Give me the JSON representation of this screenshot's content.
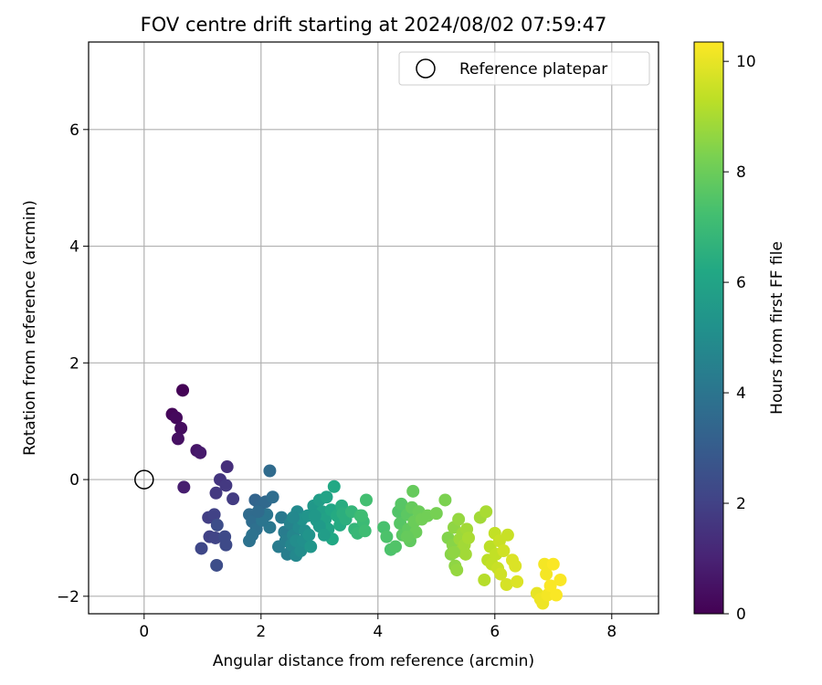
{
  "chart_data": {
    "type": "scatter",
    "title": "FOV centre drift starting at 2024/08/02 07:59:47",
    "xlabel": "Angular distance from reference (arcmin)",
    "ylabel": "Rotation from reference (arcmin)",
    "xlim": [
      -0.95,
      8.8
    ],
    "ylim": [
      -2.3,
      7.5
    ],
    "xticks": [
      "0",
      "2",
      "4",
      "6",
      "8"
    ],
    "xtick_values": [
      0,
      2,
      4,
      6,
      8
    ],
    "yticks": [
      "−2",
      "0",
      "2",
      "4",
      "6"
    ],
    "ytick_values": [
      -2,
      0,
      2,
      4,
      6
    ],
    "grid": true,
    "legend": {
      "placement": "top-right",
      "label": "Reference platepar"
    },
    "reference_point": {
      "x": 0,
      "y": 0
    },
    "colorbar": {
      "label": "Hours from first FF file",
      "range": [
        0,
        10.35
      ],
      "ticks": [
        "0",
        "2",
        "4",
        "6",
        "8",
        "10"
      ],
      "tick_values": [
        0,
        2,
        4,
        6,
        8,
        10
      ],
      "colormap": "viridis"
    },
    "points": [
      [
        0.66,
        1.53,
        0.05
      ],
      [
        0.48,
        1.12,
        0.15
      ],
      [
        0.55,
        1.06,
        0.25
      ],
      [
        0.63,
        0.88,
        0.35
      ],
      [
        0.58,
        0.7,
        0.45
      ],
      [
        0.9,
        0.5,
        0.6
      ],
      [
        0.96,
        0.46,
        0.75
      ],
      [
        0.68,
        -0.13,
        0.85
      ],
      [
        1.42,
        0.22,
        1.4
      ],
      [
        1.3,
        0.0,
        1.6
      ],
      [
        1.4,
        -0.1,
        1.7
      ],
      [
        1.52,
        -0.33,
        1.8
      ],
      [
        1.23,
        -0.23,
        1.7
      ],
      [
        1.1,
        -0.65,
        1.9
      ],
      [
        1.2,
        -0.6,
        2.0
      ],
      [
        1.12,
        -0.98,
        2.0
      ],
      [
        1.22,
        -1.0,
        2.1
      ],
      [
        0.98,
        -1.18,
        2.2
      ],
      [
        1.38,
        -0.98,
        2.3
      ],
      [
        1.4,
        -1.12,
        2.3
      ],
      [
        1.24,
        -1.47,
        2.4
      ],
      [
        1.25,
        -0.78,
        2.4
      ],
      [
        2.15,
        0.15,
        3.6
      ],
      [
        1.9,
        -0.35,
        3.3
      ],
      [
        1.98,
        -0.45,
        3.4
      ],
      [
        2.08,
        -0.38,
        3.5
      ],
      [
        2.2,
        -0.3,
        3.7
      ],
      [
        1.8,
        -0.6,
        3.6
      ],
      [
        1.85,
        -0.72,
        3.7
      ],
      [
        1.92,
        -0.85,
        3.8
      ],
      [
        1.85,
        -0.95,
        3.9
      ],
      [
        1.8,
        -1.05,
        3.9
      ],
      [
        2.1,
        -0.6,
        4.0
      ],
      [
        2.15,
        -0.82,
        4.1
      ],
      [
        2.02,
        -0.7,
        4.0
      ],
      [
        1.95,
        -0.55,
        3.6
      ],
      [
        2.35,
        -0.65,
        4.2
      ],
      [
        2.4,
        -0.9,
        4.3
      ],
      [
        2.3,
        -1.15,
        4.3
      ],
      [
        2.42,
        -1.05,
        4.4
      ],
      [
        2.45,
        -1.28,
        4.4
      ],
      [
        2.5,
        -0.75,
        4.6
      ],
      [
        2.55,
        -0.95,
        4.7
      ],
      [
        2.52,
        -1.12,
        4.7
      ],
      [
        2.6,
        -1.3,
        4.8
      ],
      [
        2.62,
        -0.55,
        4.9
      ],
      [
        2.65,
        -0.82,
        4.9
      ],
      [
        2.6,
        -1.05,
        5.0
      ],
      [
        2.68,
        -1.22,
        5.0
      ],
      [
        2.72,
        -1.05,
        5.1
      ],
      [
        2.75,
        -0.88,
        5.1
      ],
      [
        2.7,
        -0.68,
        5.2
      ],
      [
        2.8,
        -0.62,
        5.3
      ],
      [
        2.82,
        -0.95,
        5.3
      ],
      [
        2.85,
        -1.15,
        5.4
      ],
      [
        2.55,
        -0.65,
        4.8
      ],
      [
        2.9,
        -0.45,
        5.5
      ],
      [
        2.95,
        -0.7,
        5.6
      ],
      [
        3.0,
        -0.35,
        5.7
      ],
      [
        3.05,
        -0.55,
        5.8
      ],
      [
        3.1,
        -0.68,
        5.9
      ],
      [
        3.12,
        -0.3,
        6.0
      ],
      [
        3.15,
        -0.85,
        6.0
      ],
      [
        3.2,
        -0.52,
        6.1
      ],
      [
        3.22,
        -1.02,
        6.2
      ],
      [
        3.25,
        -0.12,
        6.2
      ],
      [
        3.3,
        -0.62,
        6.3
      ],
      [
        3.35,
        -0.78,
        6.3
      ],
      [
        3.38,
        -0.45,
        6.4
      ],
      [
        3.4,
        -0.58,
        6.5
      ],
      [
        3.45,
        -0.68,
        6.5
      ],
      [
        3.0,
        -0.8,
        5.6
      ],
      [
        3.08,
        -0.95,
        5.7
      ],
      [
        2.92,
        -0.62,
        5.5
      ],
      [
        3.55,
        -0.55,
        6.8
      ],
      [
        3.6,
        -0.85,
        6.8
      ],
      [
        3.65,
        -0.92,
        6.9
      ],
      [
        3.7,
        -0.62,
        7.0
      ],
      [
        3.75,
        -0.72,
        7.0
      ],
      [
        3.78,
        -0.88,
        7.1
      ],
      [
        3.8,
        -0.35,
        7.2
      ],
      [
        3.72,
        -0.62,
        7.1
      ],
      [
        4.1,
        -0.82,
        7.3
      ],
      [
        4.15,
        -0.98,
        7.4
      ],
      [
        4.22,
        -1.2,
        7.4
      ],
      [
        4.3,
        -1.15,
        7.5
      ],
      [
        4.35,
        -0.55,
        7.5
      ],
      [
        4.38,
        -0.75,
        7.6
      ],
      [
        4.4,
        -0.42,
        7.6
      ],
      [
        4.42,
        -0.95,
        7.7
      ],
      [
        4.5,
        -0.6,
        7.7
      ],
      [
        4.52,
        -0.85,
        7.8
      ],
      [
        4.55,
        -1.05,
        7.8
      ],
      [
        4.58,
        -0.48,
        7.9
      ],
      [
        4.6,
        -0.2,
        7.9
      ],
      [
        4.62,
        -0.72,
        8.0
      ],
      [
        4.65,
        -0.9,
        8.0
      ],
      [
        4.7,
        -0.55,
        8.0
      ],
      [
        4.75,
        -0.68,
        8.1
      ],
      [
        4.85,
        -0.62,
        8.1
      ],
      [
        4.5,
        -0.98,
        7.9
      ],
      [
        5.0,
        -0.58,
        8.2
      ],
      [
        5.15,
        -0.35,
        8.3
      ],
      [
        5.2,
        -1.0,
        8.4
      ],
      [
        5.25,
        -1.28,
        8.5
      ],
      [
        5.28,
        -1.12,
        8.5
      ],
      [
        5.3,
        -0.82,
        8.6
      ],
      [
        5.32,
        -1.48,
        8.6
      ],
      [
        5.35,
        -1.55,
        8.7
      ],
      [
        5.38,
        -0.68,
        8.7
      ],
      [
        5.4,
        -1.02,
        8.8
      ],
      [
        5.42,
        -1.22,
        8.8
      ],
      [
        5.45,
        -0.92,
        8.8
      ],
      [
        5.48,
        -1.12,
        8.9
      ],
      [
        5.5,
        -1.28,
        8.9
      ],
      [
        5.52,
        -0.85,
        8.9
      ],
      [
        5.55,
        -1.0,
        9.0
      ],
      [
        5.3,
        -1.25,
        8.6
      ],
      [
        5.75,
        -0.65,
        8.9
      ],
      [
        5.85,
        -0.55,
        9.0
      ],
      [
        5.82,
        -1.72,
        9.2
      ],
      [
        5.88,
        -1.38,
        9.3
      ],
      [
        5.92,
        -1.15,
        9.3
      ],
      [
        5.95,
        -1.45,
        9.4
      ],
      [
        6.0,
        -0.92,
        9.4
      ],
      [
        6.02,
        -1.28,
        9.4
      ],
      [
        6.05,
        -1.52,
        9.5
      ],
      [
        6.08,
        -1.05,
        9.5
      ],
      [
        6.1,
        -1.62,
        9.6
      ],
      [
        6.15,
        -1.22,
        9.6
      ],
      [
        6.2,
        -1.8,
        9.7
      ],
      [
        6.22,
        -0.95,
        9.5
      ],
      [
        6.3,
        -1.38,
        9.8
      ],
      [
        6.35,
        -1.48,
        9.8
      ],
      [
        6.38,
        -1.75,
        9.8
      ],
      [
        6.72,
        -1.95,
        10.0
      ],
      [
        6.78,
        -2.05,
        10.1
      ],
      [
        6.82,
        -2.12,
        10.1
      ],
      [
        6.85,
        -1.45,
        10.2
      ],
      [
        6.88,
        -1.62,
        10.2
      ],
      [
        6.9,
        -1.98,
        10.2
      ],
      [
        6.95,
        -1.82,
        10.3
      ],
      [
        7.0,
        -1.45,
        10.3
      ],
      [
        7.05,
        -1.98,
        10.3
      ],
      [
        7.12,
        -1.72,
        10.3
      ]
    ]
  },
  "colors": {
    "reference_marker": "#000000",
    "grid": "#b0b0b0",
    "axes": "#000000"
  }
}
